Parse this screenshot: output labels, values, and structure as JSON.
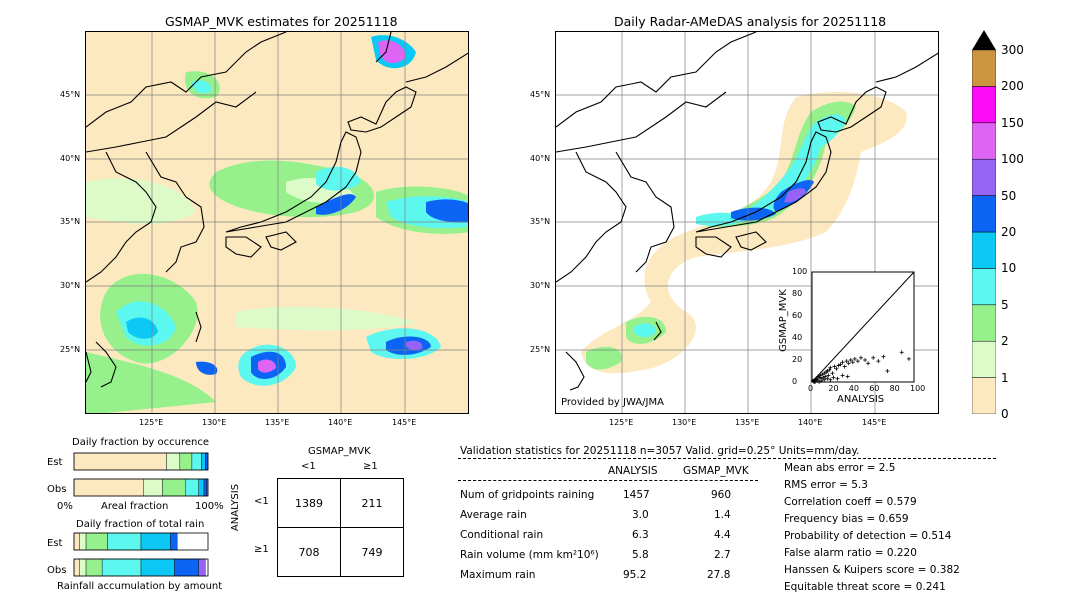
{
  "left_map": {
    "title": "GSMAP_MVK estimates for 20251118",
    "lat_labels": [
      "45°N",
      "40°N",
      "35°N",
      "30°N",
      "25°N"
    ],
    "lon_labels": [
      "125°E",
      "130°E",
      "135°E",
      "140°E",
      "145°E"
    ]
  },
  "right_map": {
    "title": "Daily Radar-AMeDAS analysis for 20251118",
    "lat_labels": [
      "45°N",
      "40°N",
      "35°N",
      "30°N",
      "25°N"
    ],
    "lon_labels": [
      "125°E",
      "130°E",
      "135°E",
      "140°E",
      "145°E"
    ],
    "credit": "Provided by JWA/JMA"
  },
  "colorbar": {
    "levels": [
      "0",
      "1",
      "2",
      "5",
      "10",
      "20",
      "50",
      "100",
      "150",
      "200",
      "300"
    ],
    "colors": [
      "#fde9c0",
      "#dcfbc8",
      "#96f08c",
      "#5cf8f0",
      "#0cc8f4",
      "#0c64f4",
      "#9664f4",
      "#de64f4",
      "#fb0cf4",
      "#cc9640"
    ]
  },
  "scatter": {
    "xlabel": "ANALYSIS",
    "ylabel": "GSMAP_MVK",
    "ticks": [
      "0",
      "20",
      "40",
      "60",
      "80",
      "100"
    ]
  },
  "occurrence": {
    "title": "Daily fraction by occurence",
    "row_labels": [
      "Est",
      "Obs"
    ],
    "axis_left": "0%",
    "axis_mid": "Areal fraction",
    "axis_right": "100%"
  },
  "total_rain": {
    "title": "Daily fraction of total rain",
    "row_labels": [
      "Est",
      "Obs"
    ],
    "footer": "Rainfall accumulation by amount"
  },
  "contingency": {
    "col_header": "GSMAP_MVK",
    "col_labels": [
      "<1",
      "≥1"
    ],
    "row_header": "ANALYSIS",
    "row_labels": [
      "<1",
      "≥1"
    ],
    "cells": [
      [
        "1389",
        "211"
      ],
      [
        "708",
        "749"
      ]
    ]
  },
  "validation": {
    "header": "Validation statistics for 20251118  n=3057 Valid. grid=0.25° Units=mm/day.",
    "col_analysis": "ANALYSIS",
    "col_gsmap": "GSMAP_MVK",
    "rows": [
      {
        "label": "Num of gridpoints raining",
        "analysis": "1457",
        "gsmap": "960"
      },
      {
        "label": "Average rain",
        "analysis": "3.0",
        "gsmap": "1.4"
      },
      {
        "label": "Conditional rain",
        "analysis": "6.3",
        "gsmap": "4.4"
      },
      {
        "label": "Rain volume (mm km²10⁶)",
        "analysis": "5.8",
        "gsmap": "2.7"
      },
      {
        "label": "Maximum rain",
        "analysis": "95.2",
        "gsmap": "27.8"
      }
    ],
    "scores": [
      "Mean abs error =    2.5",
      "RMS error =    5.3",
      "Correlation coeff =  0.579",
      "Frequency bias =  0.659",
      "Probability of detection =  0.514",
      "False alarm ratio =  0.220",
      "Hanssen & Kuipers score =  0.382",
      "Equitable threat score =  0.241"
    ]
  },
  "chart_data": [
    {
      "type": "scatter",
      "title": "",
      "xlabel": "ANALYSIS",
      "ylabel": "GSMAP_MVK",
      "xlim": [
        0,
        100
      ],
      "ylim": [
        0,
        100
      ],
      "diagonal": true,
      "points": [
        [
          1,
          1
        ],
        [
          2,
          1
        ],
        [
          3,
          2
        ],
        [
          4,
          3
        ],
        [
          5,
          2
        ],
        [
          6,
          5
        ],
        [
          7,
          4
        ],
        [
          8,
          6
        ],
        [
          9,
          3
        ],
        [
          10,
          7
        ],
        [
          11,
          4
        ],
        [
          12,
          8
        ],
        [
          13,
          5
        ],
        [
          14,
          9
        ],
        [
          15,
          10
        ],
        [
          16,
          6
        ],
        [
          17,
          11
        ],
        [
          18,
          13
        ],
        [
          20,
          8
        ],
        [
          22,
          14
        ],
        [
          24,
          12
        ],
        [
          26,
          15
        ],
        [
          28,
          16
        ],
        [
          30,
          18
        ],
        [
          32,
          14
        ],
        [
          34,
          19
        ],
        [
          36,
          17
        ],
        [
          38,
          20
        ],
        [
          40,
          18
        ],
        [
          42,
          21
        ],
        [
          45,
          19
        ],
        [
          48,
          22
        ],
        [
          52,
          20
        ],
        [
          55,
          17
        ],
        [
          60,
          22
        ],
        [
          65,
          19
        ],
        [
          70,
          23
        ],
        [
          74,
          10
        ],
        [
          88,
          27
        ],
        [
          95,
          21
        ],
        [
          2,
          0
        ],
        [
          3,
          0
        ],
        [
          5,
          1
        ],
        [
          7,
          0
        ],
        [
          9,
          1
        ],
        [
          12,
          2
        ],
        [
          15,
          3
        ],
        [
          18,
          2
        ],
        [
          21,
          4
        ],
        [
          25,
          3
        ],
        [
          30,
          6
        ],
        [
          35,
          5
        ]
      ]
    },
    {
      "type": "bar",
      "title": "Daily fraction by occurence",
      "categories": [
        "Est",
        "Obs"
      ],
      "series_colors": [
        "#fde9c0",
        "#dcfbc8",
        "#96f08c",
        "#5cf8f0",
        "#0cc8f4",
        "#0c64f4",
        "#9664f4"
      ],
      "values": [
        [
          0.69,
          0.1,
          0.09,
          0.07,
          0.03,
          0.02,
          0.0
        ],
        [
          0.52,
          0.14,
          0.17,
          0.1,
          0.04,
          0.02,
          0.01
        ]
      ],
      "xlim": [
        0,
        1
      ]
    },
    {
      "type": "bar",
      "title": "Daily fraction of total rain",
      "categories": [
        "Est",
        "Obs"
      ],
      "series_colors": [
        "#fde9c0",
        "#dcfbc8",
        "#96f08c",
        "#5cf8f0",
        "#0cc8f4",
        "#0c64f4",
        "#9664f4"
      ],
      "values": [
        [
          0.04,
          0.05,
          0.16,
          0.25,
          0.22,
          0.05,
          0.0
        ],
        [
          0.04,
          0.05,
          0.12,
          0.29,
          0.25,
          0.18,
          0.05
        ]
      ],
      "xlim": [
        0,
        1
      ]
    }
  ]
}
